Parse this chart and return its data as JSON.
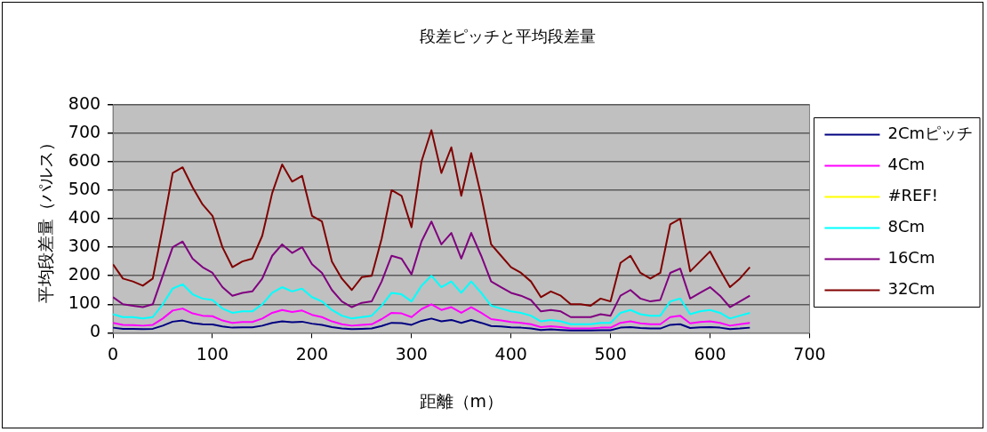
{
  "chart_data": {
    "type": "line",
    "title": "段差ピッチと平均段差量",
    "xlabel": "距離（m）",
    "ylabel": "平均段差量（パルス）",
    "x": [
      0,
      10,
      20,
      30,
      40,
      50,
      60,
      70,
      80,
      90,
      100,
      110,
      120,
      130,
      140,
      150,
      160,
      170,
      180,
      190,
      200,
      210,
      220,
      230,
      240,
      250,
      260,
      270,
      280,
      290,
      300,
      310,
      320,
      330,
      340,
      350,
      360,
      370,
      380,
      390,
      400,
      410,
      420,
      430,
      440,
      450,
      460,
      470,
      480,
      490,
      500,
      510,
      520,
      530,
      540,
      550,
      560,
      570,
      580,
      590,
      600,
      610,
      620,
      630,
      640
    ],
    "series": [
      {
        "name": "2Cmピッチ",
        "color": "#000080",
        "values": [
          18,
          14,
          14,
          13,
          14,
          25,
          39,
          43,
          34,
          30,
          29,
          22,
          18,
          19,
          19,
          25,
          35,
          40,
          37,
          39,
          32,
          28,
          20,
          15,
          13,
          14,
          15,
          24,
          35,
          34,
          28,
          42,
          50,
          40,
          45,
          35,
          45,
          35,
          24,
          22,
          19,
          18,
          15,
          10,
          12,
          10,
          8,
          8,
          8,
          9,
          9,
          18,
          20,
          17,
          15,
          15,
          28,
          30,
          17,
          19,
          20,
          18,
          13,
          15,
          18
        ]
      },
      {
        "name": "4Cm",
        "color": "#ff00ff",
        "values": [
          35,
          28,
          27,
          25,
          28,
          50,
          78,
          85,
          68,
          60,
          58,
          43,
          35,
          38,
          38,
          50,
          70,
          80,
          73,
          78,
          63,
          55,
          40,
          30,
          25,
          28,
          30,
          48,
          70,
          68,
          55,
          83,
          100,
          80,
          90,
          70,
          90,
          70,
          48,
          43,
          38,
          35,
          30,
          20,
          23,
          20,
          15,
          15,
          15,
          18,
          18,
          35,
          40,
          33,
          30,
          30,
          55,
          60,
          33,
          38,
          40,
          35,
          25,
          30,
          35
        ]
      },
      {
        "name": "#REF!",
        "color": "#ffff00",
        "values": [
          null,
          null,
          null,
          null,
          null,
          null,
          null,
          null,
          null,
          null,
          null,
          null,
          null,
          null,
          null,
          null,
          null,
          null,
          null,
          null,
          null,
          null,
          null,
          null,
          null,
          null,
          null,
          null,
          null,
          null,
          null,
          null,
          null,
          null,
          null,
          null,
          null,
          null,
          null,
          null,
          null,
          null,
          null,
          null,
          null,
          null,
          null,
          null,
          null,
          null,
          null,
          null,
          null,
          null,
          null,
          null,
          null,
          null,
          null,
          null,
          null,
          null,
          null,
          null,
          null
        ]
      },
      {
        "name": "8Cm",
        "color": "#00ffff",
        "values": [
          65,
          55,
          55,
          50,
          55,
          100,
          155,
          170,
          135,
          120,
          115,
          85,
          70,
          75,
          75,
          100,
          140,
          160,
          145,
          155,
          125,
          110,
          80,
          60,
          50,
          55,
          60,
          95,
          140,
          135,
          110,
          165,
          200,
          160,
          180,
          140,
          180,
          140,
          95,
          85,
          75,
          70,
          60,
          40,
          45,
          40,
          30,
          30,
          30,
          35,
          35,
          70,
          80,
          65,
          60,
          60,
          110,
          120,
          65,
          75,
          80,
          70,
          50,
          60,
          70
        ]
      },
      {
        "name": "16Cm",
        "color": "#800080",
        "values": [
          125,
          100,
          95,
          90,
          100,
          200,
          300,
          320,
          260,
          230,
          210,
          160,
          130,
          140,
          145,
          190,
          270,
          310,
          280,
          300,
          240,
          210,
          150,
          110,
          90,
          105,
          110,
          180,
          270,
          260,
          205,
          320,
          390,
          310,
          350,
          260,
          350,
          270,
          180,
          160,
          140,
          130,
          115,
          75,
          80,
          75,
          55,
          55,
          55,
          65,
          60,
          130,
          150,
          120,
          110,
          115,
          210,
          225,
          120,
          140,
          160,
          130,
          90,
          110,
          130
        ]
      },
      {
        "name": "32Cm",
        "color": "#800000",
        "values": [
          240,
          190,
          180,
          165,
          190,
          370,
          560,
          580,
          510,
          450,
          410,
          300,
          230,
          250,
          260,
          340,
          490,
          590,
          530,
          550,
          410,
          390,
          250,
          190,
          150,
          195,
          200,
          330,
          500,
          480,
          370,
          600,
          710,
          560,
          650,
          480,
          630,
          480,
          310,
          270,
          230,
          210,
          180,
          125,
          145,
          130,
          100,
          100,
          95,
          120,
          110,
          245,
          270,
          210,
          190,
          210,
          380,
          400,
          215,
          250,
          285,
          220,
          160,
          190,
          230
        ]
      }
    ],
    "xlim": [
      0,
      700
    ],
    "xticks": [
      0,
      100,
      200,
      300,
      400,
      500,
      600,
      700
    ],
    "ylim": [
      0,
      800
    ],
    "yticks": [
      0,
      100,
      200,
      300,
      400,
      500,
      600,
      700,
      800
    ],
    "grid": "y",
    "legend": "right",
    "marker": "none",
    "line_style": "solid"
  }
}
